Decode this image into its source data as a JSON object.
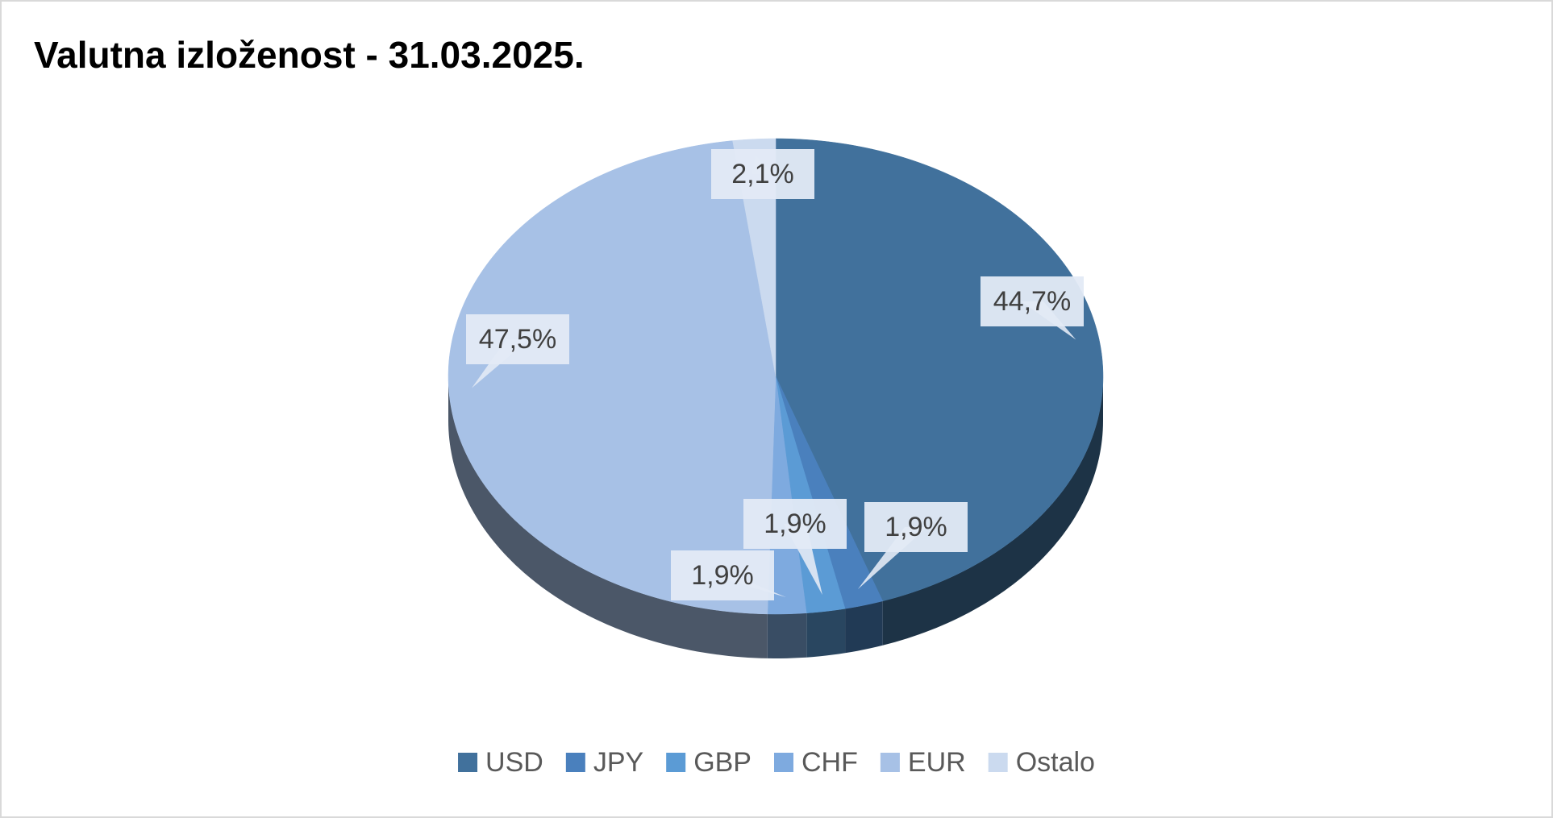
{
  "chart_data": {
    "type": "pie",
    "title": "Valutna izloženost - 31.03.2025.",
    "categories": [
      "USD",
      "JPY",
      "GBP",
      "CHF",
      "EUR",
      "Ostalo"
    ],
    "values": [
      44.7,
      1.9,
      1.9,
      1.9,
      47.5,
      2.1
    ],
    "value_labels": [
      "44,7%",
      "1,9%",
      "1,9%",
      "1,9%",
      "47,5%",
      "2,1%"
    ],
    "colors": [
      "#41719c",
      "#4a80bd",
      "#5b9bd5",
      "#7eaadf",
      "#a7c1e6",
      "#cbdaef"
    ],
    "legend": "bottom"
  }
}
